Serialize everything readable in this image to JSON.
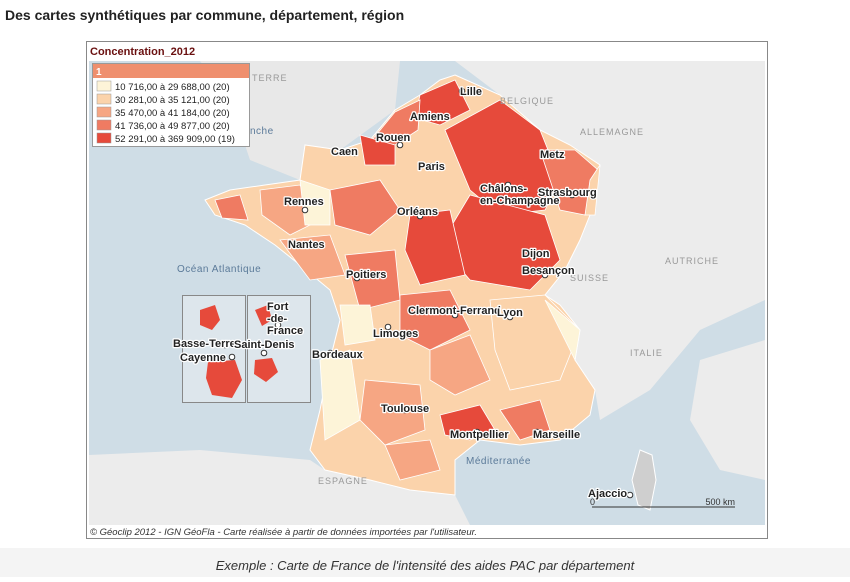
{
  "page_title": "Des cartes synthétiques par commune, département, région",
  "map": {
    "title": "Concentration_2012",
    "legend": {
      "header": "1",
      "items": [
        {
          "label": "10 716,00 à 29 688,00 (20)",
          "color": "#fdf4d8"
        },
        {
          "label": "30 281,00 à 35 121,00 (20)",
          "color": "#fbd3ab"
        },
        {
          "label": "35 470,00 à 41 184,00 (20)",
          "color": "#f6a683"
        },
        {
          "label": "41 736,00 à 49 877,00 (20)",
          "color": "#ef7b62"
        },
        {
          "label": "52 291,00 à 369 909,00 (19)",
          "color": "#e64a3b"
        }
      ]
    },
    "cities": [
      {
        "lines": [
          "Lille"
        ]
      },
      {
        "lines": [
          "Amiens"
        ]
      },
      {
        "lines": [
          "Rouen"
        ]
      },
      {
        "lines": [
          "Caen"
        ]
      },
      {
        "lines": [
          "Paris"
        ]
      },
      {
        "lines": [
          "Metz"
        ]
      },
      {
        "lines": [
          "Châlons-",
          "en-Champagne"
        ]
      },
      {
        "lines": [
          "Strasbourg"
        ]
      },
      {
        "lines": [
          "Rennes"
        ]
      },
      {
        "lines": [
          "Orléans"
        ]
      },
      {
        "lines": [
          "Nantes"
        ]
      },
      {
        "lines": [
          "Dijon"
        ]
      },
      {
        "lines": [
          "Besançon"
        ]
      },
      {
        "lines": [
          "Poitiers"
        ]
      },
      {
        "lines": [
          "Clermont-Ferrand"
        ]
      },
      {
        "lines": [
          "Lyon"
        ]
      },
      {
        "lines": [
          "Limoges"
        ]
      },
      {
        "lines": [
          "Bordeaux"
        ]
      },
      {
        "lines": [
          "Basse-Terre"
        ]
      },
      {
        "lines": [
          "Fort",
          "-de-",
          "France"
        ]
      },
      {
        "lines": [
          "Saint-Denis"
        ]
      },
      {
        "lines": [
          "Cayenne"
        ]
      },
      {
        "lines": [
          "Toulouse"
        ]
      },
      {
        "lines": [
          "Montpellier"
        ]
      },
      {
        "lines": [
          "Marseille"
        ]
      },
      {
        "lines": [
          "Ajaccio"
        ]
      }
    ],
    "regions": [
      "TERRE",
      "BELGIQUE",
      "ALLEMAGNE",
      "SUISSE",
      "AUTRICHE",
      "ITALIE",
      "ESPAGNE"
    ],
    "seas": [
      "nche",
      "Océan Atlantique",
      "Méditerranée"
    ],
    "scale": {
      "start": "0",
      "end": "500 km"
    },
    "credit": "© Géoclip 2012 - IGN GéoFla - Carte réalisée à partir de données importées par l'utilisateur."
  },
  "caption": "Exemple : Carte de France de l'intensité des aides PAC par département"
}
